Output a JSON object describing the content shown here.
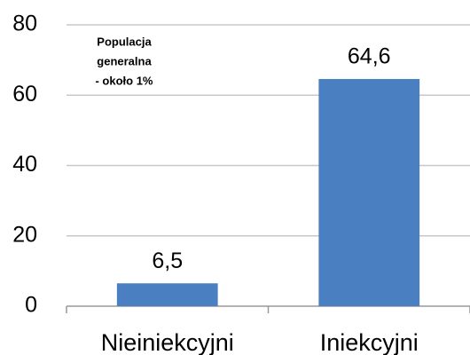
{
  "chart_data": {
    "type": "bar",
    "categories": [
      "Nieiniekcyjni",
      "Iniekcyjni"
    ],
    "values": [
      6.5,
      64.6
    ],
    "value_labels": [
      "6,5",
      "64,6"
    ],
    "color": "#4a7fc1",
    "annotation": [
      "Populacja",
      "generalna",
      "- około 1%"
    ],
    "ylim": [
      0,
      80
    ],
    "yticks": [
      0,
      20,
      40,
      60,
      80
    ],
    "grid": true
  }
}
